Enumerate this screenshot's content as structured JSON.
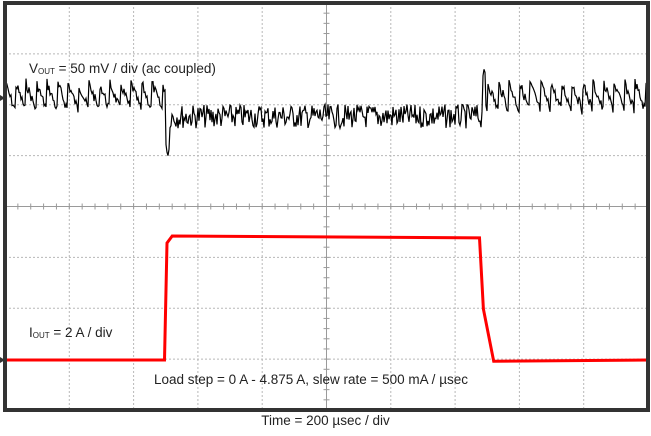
{
  "chart_data": {
    "type": "line",
    "title": "",
    "xlabel": "Time = 200 µsec / div",
    "ylabel": "",
    "grid": true,
    "x_divisions": 10,
    "y_divisions": 8,
    "x_scale": "200 µsec / div",
    "annotations": [
      "VOUT = 50 mV / div (ac coupled)",
      "IOUT = 2 A / div",
      "Load step = 0 A - 4.875 A, slew rate = 500 mA / µsec"
    ],
    "series": [
      {
        "name": "VOUT",
        "color": "#000000",
        "scale": "50 mV / div (ac coupled)",
        "description": "Sawtooth ripple at 0 A, drops ~20 mV with dip at load step-up, noisy band during load, overshoot spike at load release",
        "step_up_time_div": 2.5,
        "step_down_time_div": 7.4,
        "level_before_div": 2.15,
        "level_during_div": 1.77,
        "dip_min_div": 1.25,
        "spike_max_div": 2.7,
        "ripple_pp_div": 0.55
      },
      {
        "name": "IOUT",
        "color": "#ff0000",
        "scale": "2 A / div",
        "low_A": 0,
        "high_A": 4.875,
        "rise_time_div": 2.5,
        "fall_time_div": 7.4,
        "points_time_div": [
          0,
          2.48,
          2.52,
          2.6,
          7.38,
          7.44,
          7.6,
          10
        ],
        "points_current_A": [
          0,
          0,
          4.6,
          4.875,
          4.8,
          2.0,
          -0.05,
          0
        ]
      }
    ]
  },
  "labels": {
    "vout_main": "V",
    "vout_sub": "OUT",
    "vout_rest": " = 50 mV / div (ac coupled)",
    "iout_main": "I",
    "iout_sub": "OUT",
    "iout_rest": " = 2 A / div",
    "load_step": "Load step = 0 A - 4.875 A, slew rate = 500 mA / µsec",
    "time": "Time = 200 µsec / div"
  },
  "colors": {
    "frame": "#333333",
    "grid": "#b8b8b8",
    "axis": "#9a9a9a",
    "vout": "#000000",
    "iout": "#ff0000"
  }
}
